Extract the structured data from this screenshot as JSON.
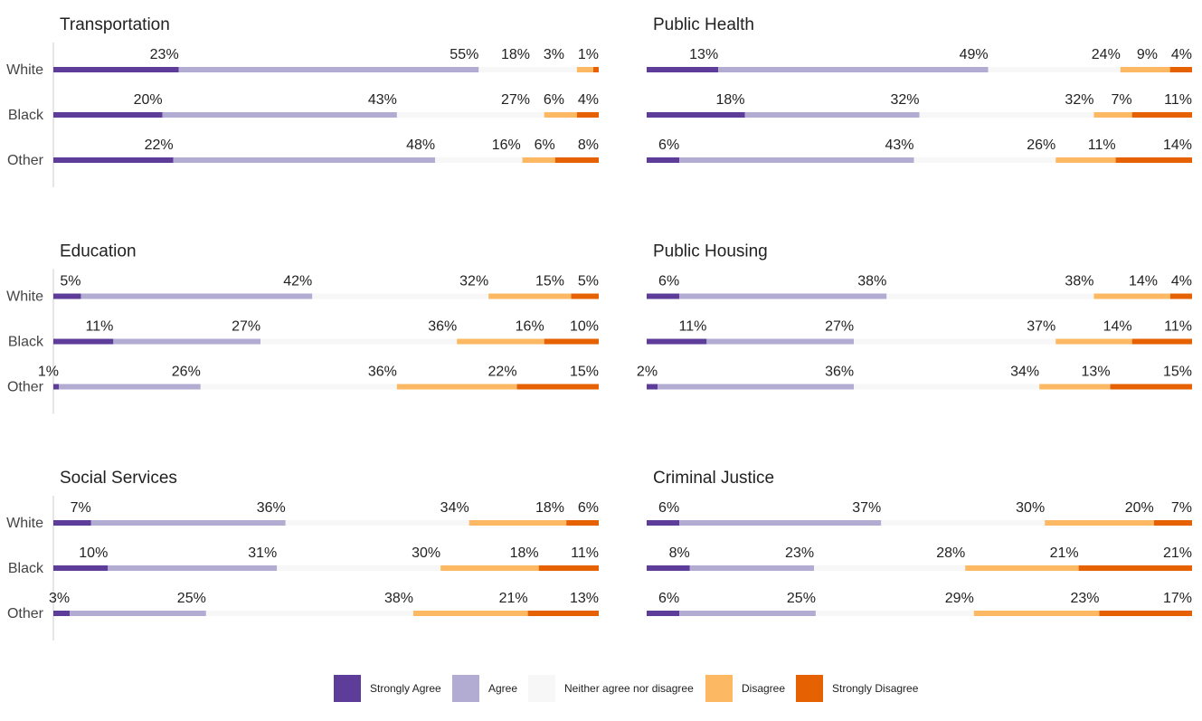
{
  "chart_data": [
    {
      "type": "bar",
      "title": "Transportation",
      "categories": [
        "White",
        "Black",
        "Other"
      ],
      "series": [
        {
          "name": "Strongly Agree",
          "color": "#5e3c99",
          "values": [
            23,
            20,
            22
          ],
          "value_labels": [
            "23%",
            "20%",
            "22%"
          ]
        },
        {
          "name": "Agree",
          "color": "#b2abd2",
          "values": [
            55,
            43,
            48
          ],
          "value_labels": [
            "55%",
            "43%",
            "48%"
          ]
        },
        {
          "name": "Neither agree nor disagree",
          "color": "#f7f7f7",
          "values": [
            18,
            27,
            16
          ],
          "value_labels": [
            "18%",
            "27%",
            "16%"
          ]
        },
        {
          "name": "Disagree",
          "color": "#fdb863",
          "values": [
            3,
            6,
            6
          ],
          "value_labels": [
            "3%",
            "6%",
            "6%"
          ]
        },
        {
          "name": "Strongly Disagree",
          "color": "#e66101",
          "values": [
            1,
            4,
            8
          ],
          "value_labels": [
            "1%",
            "4%",
            "8%"
          ]
        }
      ]
    },
    {
      "type": "bar",
      "title": "Public Health",
      "series": [
        {
          "name": "Strongly Agree",
          "color": "#5e3c99",
          "values": [
            13,
            18,
            6
          ],
          "value_labels": [
            "13%",
            "18%",
            "6%"
          ]
        },
        {
          "name": "Agree",
          "color": "#b2abd2",
          "values": [
            49,
            32,
            43
          ],
          "value_labels": [
            "49%",
            "32%",
            "43%"
          ]
        },
        {
          "name": "Neither agree nor disagree",
          "color": "#f7f7f7",
          "values": [
            24,
            32,
            26
          ],
          "value_labels": [
            "24%",
            "32%",
            "26%"
          ]
        },
        {
          "name": "Disagree",
          "color": "#fdb863",
          "values": [
            9,
            7,
            11
          ],
          "value_labels": [
            "9%",
            "7%",
            "11%"
          ]
        },
        {
          "name": "Strongly Disagree",
          "color": "#e66101",
          "values": [
            4,
            11,
            14
          ],
          "value_labels": [
            "4%",
            "11%",
            "14%"
          ]
        }
      ]
    },
    {
      "type": "bar",
      "title": "Education",
      "categories": [
        "White",
        "Black",
        "Other"
      ],
      "series": [
        {
          "name": "Strongly Agree",
          "color": "#5e3c99",
          "values": [
            5,
            11,
            1
          ],
          "value_labels": [
            "5%",
            "11%",
            "1%"
          ]
        },
        {
          "name": "Agree",
          "color": "#b2abd2",
          "values": [
            42,
            27,
            26
          ],
          "value_labels": [
            "42%",
            "27%",
            "26%"
          ]
        },
        {
          "name": "Neither agree nor disagree",
          "color": "#f7f7f7",
          "values": [
            32,
            36,
            36
          ],
          "value_labels": [
            "32%",
            "36%",
            "36%"
          ]
        },
        {
          "name": "Disagree",
          "color": "#fdb863",
          "values": [
            15,
            16,
            22
          ],
          "value_labels": [
            "15%",
            "16%",
            "22%"
          ]
        },
        {
          "name": "Strongly Disagree",
          "color": "#e66101",
          "values": [
            5,
            10,
            15
          ],
          "value_labels": [
            "5%",
            "10%",
            "15%"
          ]
        }
      ]
    },
    {
      "type": "bar",
      "title": "Public Housing",
      "series": [
        {
          "name": "Strongly Agree",
          "color": "#5e3c99",
          "values": [
            6,
            11,
            2
          ],
          "value_labels": [
            "6%",
            "11%",
            "2%"
          ]
        },
        {
          "name": "Agree",
          "color": "#b2abd2",
          "values": [
            38,
            27,
            36
          ],
          "value_labels": [
            "38%",
            "27%",
            "36%"
          ]
        },
        {
          "name": "Neither agree nor disagree",
          "color": "#f7f7f7",
          "values": [
            38,
            37,
            34
          ],
          "value_labels": [
            "38%",
            "37%",
            "34%"
          ]
        },
        {
          "name": "Disagree",
          "color": "#fdb863",
          "values": [
            14,
            14,
            13
          ],
          "value_labels": [
            "14%",
            "14%",
            "13%"
          ]
        },
        {
          "name": "Strongly Disagree",
          "color": "#e66101",
          "values": [
            4,
            11,
            15
          ],
          "value_labels": [
            "4%",
            "11%",
            "15%"
          ]
        }
      ]
    },
    {
      "type": "bar",
      "title": "Social Services",
      "categories": [
        "White",
        "Black",
        "Other"
      ],
      "series": [
        {
          "name": "Strongly Agree",
          "color": "#5e3c99",
          "values": [
            7,
            10,
            3
          ],
          "value_labels": [
            "7%",
            "10%",
            "3%"
          ]
        },
        {
          "name": "Agree",
          "color": "#b2abd2",
          "values": [
            36,
            31,
            25
          ],
          "value_labels": [
            "36%",
            "31%",
            "25%"
          ]
        },
        {
          "name": "Neither agree nor disagree",
          "color": "#f7f7f7",
          "values": [
            34,
            30,
            38
          ],
          "value_labels": [
            "34%",
            "30%",
            "38%"
          ]
        },
        {
          "name": "Disagree",
          "color": "#fdb863",
          "values": [
            18,
            18,
            21
          ],
          "value_labels": [
            "18%",
            "18%",
            "21%"
          ]
        },
        {
          "name": "Strongly Disagree",
          "color": "#e66101",
          "values": [
            6,
            11,
            13
          ],
          "value_labels": [
            "6%",
            "11%",
            "13%"
          ]
        }
      ]
    },
    {
      "type": "bar",
      "title": "Criminal Justice",
      "series": [
        {
          "name": "Strongly Agree",
          "color": "#5e3c99",
          "values": [
            6,
            8,
            6
          ],
          "value_labels": [
            "6%",
            "8%",
            "6%"
          ]
        },
        {
          "name": "Agree",
          "color": "#b2abd2",
          "values": [
            37,
            23,
            25
          ],
          "value_labels": [
            "37%",
            "23%",
            "25%"
          ]
        },
        {
          "name": "Neither agree nor disagree",
          "color": "#f7f7f7",
          "values": [
            30,
            28,
            29
          ],
          "value_labels": [
            "30%",
            "28%",
            "29%"
          ]
        },
        {
          "name": "Disagree",
          "color": "#fdb863",
          "values": [
            20,
            21,
            23
          ],
          "value_labels": [
            "20%",
            "21%",
            "23%"
          ]
        },
        {
          "name": "Strongly Disagree",
          "color": "#e66101",
          "values": [
            7,
            21,
            17
          ],
          "value_labels": [
            "7%",
            "21%",
            "17%"
          ]
        }
      ]
    }
  ]
}
